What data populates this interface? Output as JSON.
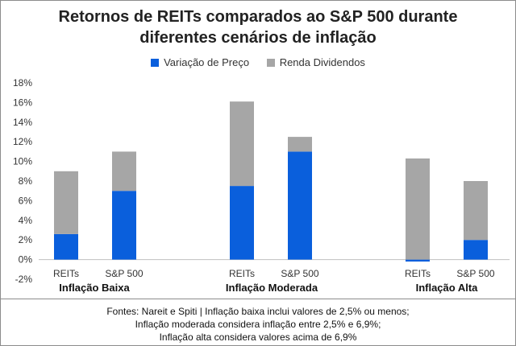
{
  "chart_data": {
    "type": "bar",
    "stacked": true,
    "title_lines": [
      "Retornos de REITs comparados ao S&P 500 durante",
      "diferentes cenários de inflação"
    ],
    "groups": [
      "Inflação Baixa",
      "Inflação Moderada",
      "Inflação Alta"
    ],
    "categories": [
      "REITs",
      "S&P 500",
      "REITs",
      "S&P 500",
      "REITs",
      "S&P 500"
    ],
    "series": [
      {
        "name": "Variação de Preço",
        "color": "#0a5fdc",
        "values": [
          2.6,
          7.0,
          7.5,
          11.0,
          -0.2,
          2.0
        ]
      },
      {
        "name": "Renda Dividendos",
        "color": "#a6a6a6",
        "values": [
          6.4,
          4.0,
          8.6,
          1.5,
          10.3,
          6.0
        ]
      }
    ],
    "ylim": [
      -2,
      18
    ],
    "yticks": [
      -2,
      0,
      2,
      4,
      6,
      8,
      10,
      12,
      14,
      16,
      18
    ],
    "ytick_labels": [
      "-2%",
      "0%",
      "2%",
      "4%",
      "6%",
      "8%",
      "10%",
      "12%",
      "14%",
      "16%",
      "18%"
    ],
    "legend_position": "top",
    "grid": false
  },
  "footnote_lines": [
    "Fontes: Nareit e Spiti | Inflação baixa inclui valores de 2,5% ou menos;",
    "Inflação moderada considera inflação entre 2,5% e 6,9%;",
    "Inflação alta considera valores acima de 6,9%"
  ]
}
